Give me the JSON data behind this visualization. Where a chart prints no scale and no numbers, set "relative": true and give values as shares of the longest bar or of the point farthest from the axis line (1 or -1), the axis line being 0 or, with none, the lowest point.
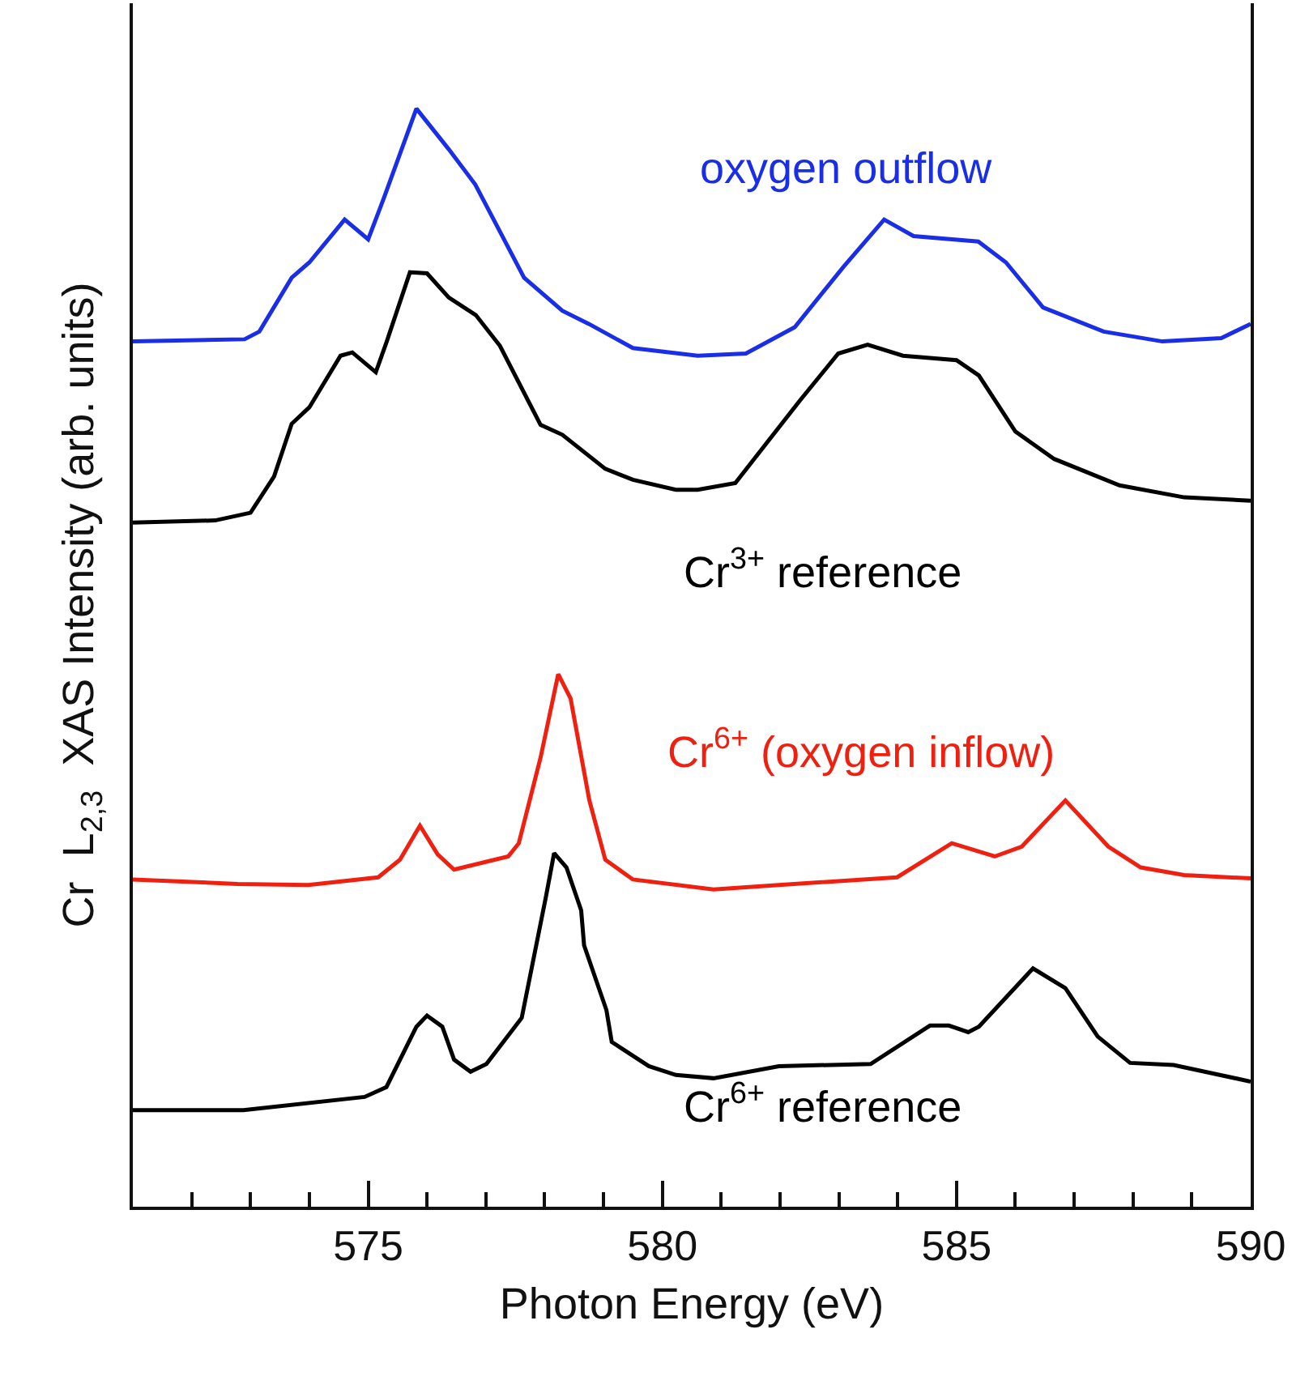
{
  "chart_data": {
    "type": "line",
    "relative": true,
    "xlabel": "Photon Energy (eV)",
    "ylabel": "Cr  L$_{2,3}$  XAS Intensity (arb. units)",
    "xlim": [
      571,
      590
    ],
    "xticks": [
      {
        "value": 571,
        "label": null
      },
      {
        "value": 572,
        "label": null
      },
      {
        "value": 573,
        "label": null
      },
      {
        "value": 574,
        "label": null
      },
      575,
      {
        "value": 576,
        "label": null
      },
      {
        "value": 577,
        "label": null
      },
      {
        "value": 578,
        "label": null
      },
      {
        "value": 579,
        "label": null
      },
      580,
      {
        "value": 581,
        "label": null
      },
      {
        "value": 582,
        "label": null
      },
      {
        "value": 583,
        "label": null
      },
      {
        "value": 584,
        "label": null
      },
      585,
      {
        "value": 586,
        "label": null
      },
      {
        "value": 587,
        "label": null
      },
      {
        "value": 588,
        "label": null
      },
      {
        "value": 589,
        "label": null
      },
      590
    ],
    "legend": false,
    "marker": "none",
    "line_style": "solid",
    "series": [
      {
        "name": "oxygen outflow",
        "color": "#1a2ee8",
        "x": [
          571.0,
          572.9,
          573.15,
          573.7,
          574.0,
          574.6,
          575.0,
          575.27,
          575.82,
          576.37,
          576.82,
          577.65,
          578.3,
          578.75,
          579.5,
          580.6,
          581.42,
          582.25,
          583.08,
          583.77,
          584.27,
          585.37,
          585.84,
          586.47,
          587.5,
          588.5,
          589.5,
          590.0
        ],
        "values": [
          0.788,
          0.79,
          0.797,
          0.846,
          0.86,
          0.899,
          0.881,
          0.919,
          1.0,
          0.963,
          0.931,
          0.846,
          0.816,
          0.804,
          0.782,
          0.775,
          0.777,
          0.801,
          0.856,
          0.899,
          0.884,
          0.879,
          0.86,
          0.819,
          0.797,
          0.788,
          0.791,
          0.804
        ]
      },
      {
        "name": "Cr$^{3+}$ reference",
        "color": "#000000",
        "x": [
          571.0,
          572.4,
          573.0,
          573.4,
          573.7,
          574.0,
          574.53,
          574.73,
          575.13,
          575.31,
          575.71,
          576.0,
          576.37,
          576.83,
          577.24,
          577.93,
          578.3,
          579.03,
          579.5,
          580.23,
          580.6,
          581.24,
          582.35,
          582.99,
          583.49,
          584.09,
          585.0,
          585.38,
          586.0,
          586.66,
          587.77,
          588.87,
          590.0
        ],
        "values": [
          0.623,
          0.625,
          0.632,
          0.665,
          0.713,
          0.728,
          0.775,
          0.778,
          0.76,
          0.787,
          0.851,
          0.85,
          0.828,
          0.812,
          0.784,
          0.712,
          0.703,
          0.672,
          0.662,
          0.653,
          0.653,
          0.659,
          0.735,
          0.777,
          0.785,
          0.775,
          0.771,
          0.757,
          0.706,
          0.681,
          0.657,
          0.646,
          0.643
        ]
      },
      {
        "name": "Cr$^{6+}$ (oxygen inflow)",
        "color": "#f02010",
        "x": [
          571.0,
          572.78,
          573.98,
          575.17,
          575.54,
          575.88,
          576.18,
          576.46,
          577.38,
          577.56,
          577.93,
          578.23,
          578.44,
          578.76,
          579.03,
          579.5,
          580.87,
          581.98,
          583.99,
          584.92,
          585.65,
          586.11,
          586.85,
          587.58,
          588.13,
          588.87,
          590.0
        ],
        "values": [
          0.298,
          0.294,
          0.293,
          0.3,
          0.316,
          0.347,
          0.321,
          0.307,
          0.319,
          0.331,
          0.409,
          0.485,
          0.463,
          0.37,
          0.316,
          0.298,
          0.289,
          0.293,
          0.3,
          0.331,
          0.319,
          0.328,
          0.37,
          0.328,
          0.309,
          0.302,
          0.299
        ]
      },
      {
        "name": "Cr$^{6+}$ reference",
        "color": "#000000",
        "x": [
          571.0,
          572.88,
          574.94,
          575.31,
          575.82,
          576.0,
          576.26,
          576.46,
          576.74,
          577.01,
          577.61,
          578.02,
          578.16,
          578.37,
          578.62,
          578.67,
          579.05,
          579.14,
          579.77,
          580.23,
          580.87,
          581.98,
          583.54,
          584.55,
          584.87,
          585.2,
          585.38,
          586.3,
          586.85,
          587.4,
          587.95,
          588.69,
          590.0
        ],
        "values": [
          0.088,
          0.088,
          0.1,
          0.109,
          0.164,
          0.174,
          0.164,
          0.134,
          0.123,
          0.13,
          0.172,
          0.282,
          0.322,
          0.309,
          0.27,
          0.238,
          0.179,
          0.15,
          0.128,
          0.12,
          0.117,
          0.128,
          0.13,
          0.165,
          0.165,
          0.159,
          0.164,
          0.217,
          0.199,
          0.155,
          0.131,
          0.129,
          0.114
        ]
      }
    ]
  }
}
